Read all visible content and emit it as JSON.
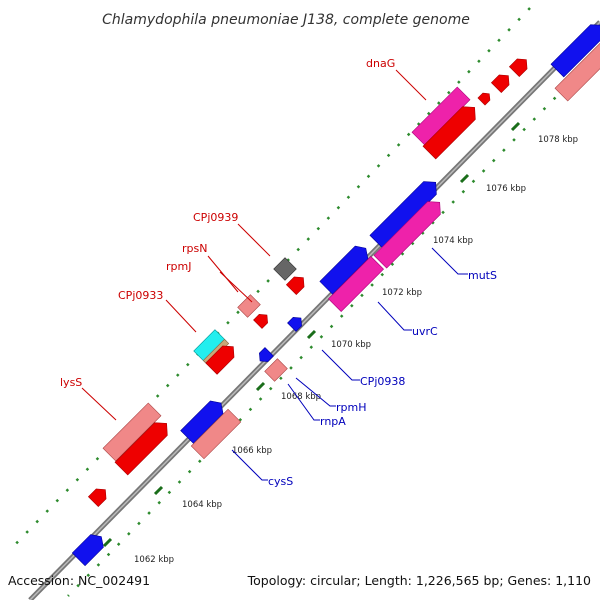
{
  "title": "Chlamydophila pneumoniae J138, complete genome",
  "footer": {
    "accession": "Accession: NC_002491",
    "summary": "Topology: circular; Length: 1,226,565 bp; Genes: 1,110"
  },
  "colors": {
    "backbone": "#888888",
    "tick": "#2e8b2e",
    "forward_label": "#cc0000",
    "reverse_label": "#0000bb"
  },
  "kbp_ticks": [
    {
      "text": "1062 kbp"
    },
    {
      "text": "1064 kbp"
    },
    {
      "text": "1066 kbp"
    },
    {
      "text": "1068 kbp"
    },
    {
      "text": "1070 kbp"
    },
    {
      "text": "1072 kbp"
    },
    {
      "text": "1074 kbp"
    },
    {
      "text": "1076 kbp"
    },
    {
      "text": "1078 kbp"
    }
  ],
  "gene_labels": {
    "dnaG": "dnaG",
    "CPj0939": "CPj0939",
    "rpsN": "rpsN",
    "rpmJ": "rpmJ",
    "CPj0933": "CPj0933",
    "lysS": "lysS",
    "mutS": "mutS",
    "uvrC": "uvrC",
    "CPj0938": "CPj0938",
    "rpmH": "rpmH",
    "rnpA": "rnpA",
    "cysS": "cysS"
  }
}
